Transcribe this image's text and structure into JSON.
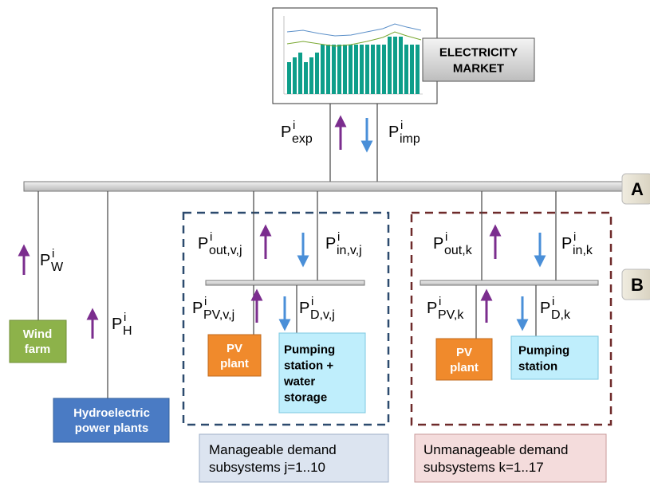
{
  "market": [
    "ELECTRICITY",
    "MARKET"
  ],
  "buses": {
    "a": "A",
    "b": "B"
  },
  "flows": {
    "exp": {
      "base": "P",
      "sup": "i",
      "sub": "exp"
    },
    "imp": {
      "base": "P",
      "sup": "i",
      "sub": "imp"
    },
    "w": {
      "base": "P",
      "sup": "i",
      "sub": "W"
    },
    "h": {
      "base": "P",
      "sup": "i",
      "sub": "H"
    },
    "out_vj": {
      "base": "P",
      "sup": "i",
      "sub": "out,v,j"
    },
    "in_vj": {
      "base": "P",
      "sup": "i",
      "sub": "in,v,j"
    },
    "pv_vj": {
      "base": "P",
      "sup": "i",
      "sub": "PV,v,j"
    },
    "d_vj": {
      "base": "P",
      "sup": "i",
      "sub": "D,v,j"
    },
    "out_k": {
      "base": "P",
      "sup": "i",
      "sub": "out,k"
    },
    "in_k": {
      "base": "P",
      "sup": "i",
      "sub": "in,k"
    },
    "pv_k": {
      "base": "P",
      "sup": "i",
      "sub": "PV,k"
    },
    "d_k": {
      "base": "P",
      "sup": "i",
      "sub": "D,k"
    }
  },
  "boxes": {
    "wind": [
      "Wind",
      "farm"
    ],
    "hydro": [
      "Hydroelectric",
      "power plants"
    ],
    "pv_m": [
      "PV",
      "plant"
    ],
    "pump_m": [
      "Pumping",
      "station +",
      "water",
      "storage"
    ],
    "pv_u": [
      "PV",
      "plant"
    ],
    "pump_u": [
      "Pumping",
      "station"
    ]
  },
  "groups": {
    "manageable": [
      "Manageable demand",
      "subsystems j=1..10"
    ],
    "unmanageable": [
      "Unmanageable demand",
      "subsystems k=1..17"
    ]
  }
}
